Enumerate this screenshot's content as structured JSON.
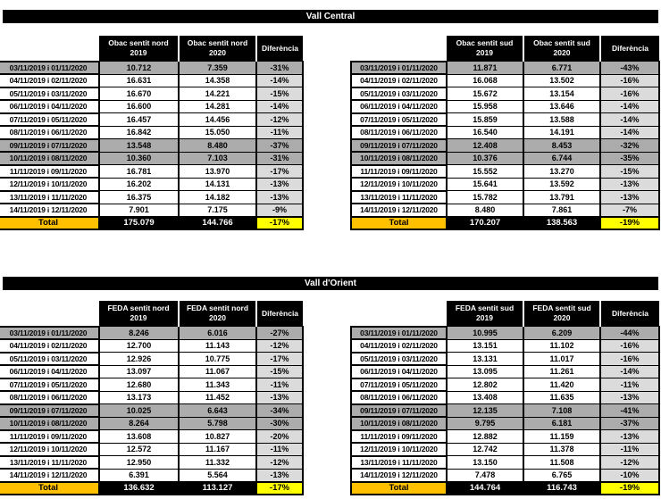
{
  "colors": {
    "header_bg": "#000000",
    "header_text": "#FFFFFF",
    "weekend_bg": "#ACACAC",
    "diff_weekday_bg": "#DBDBDB",
    "total_label_bg": "#FFC000",
    "total_value_bg": "#000000",
    "total_diff_bg": "#FFFF00",
    "border": "#000000"
  },
  "sections": [
    {
      "title": "Vall Central",
      "tables": [
        {
          "h2019": {
            "l1": "Obac sentit nord",
            "l2": "2019"
          },
          "h2020": {
            "l1": "Obac sentit nord",
            "l2": "2020"
          },
          "diff_header": "Diferència",
          "rows": [
            {
              "date": "03/11/2019 i 01/11/2020",
              "v2019": "10.712",
              "v2020": "7.359",
              "diff": "-31%",
              "weekend": true
            },
            {
              "date": "04/11/2019 i 02/11/2020",
              "v2019": "16.631",
              "v2020": "14.358",
              "diff": "-14%",
              "weekend": false
            },
            {
              "date": "05/11/2019 i 03/11/2020",
              "v2019": "16.670",
              "v2020": "14.221",
              "diff": "-15%",
              "weekend": false
            },
            {
              "date": "06/11/2019 i 04/11/2020",
              "v2019": "16.600",
              "v2020": "14.281",
              "diff": "-14%",
              "weekend": false
            },
            {
              "date": "07/11/2019 i 05/11/2020",
              "v2019": "16.457",
              "v2020": "14.456",
              "diff": "-12%",
              "weekend": false
            },
            {
              "date": "08/11/2019 i 06/11/2020",
              "v2019": "16.842",
              "v2020": "15.050",
              "diff": "-11%",
              "weekend": false
            },
            {
              "date": "09/11/2019 i 07/11/2020",
              "v2019": "13.548",
              "v2020": "8.480",
              "diff": "-37%",
              "weekend": true
            },
            {
              "date": "10/11/2019 i 08/11/2020",
              "v2019": "10.360",
              "v2020": "7.103",
              "diff": "-31%",
              "weekend": true
            },
            {
              "date": "11/11/2019 i 09/11/2020",
              "v2019": "16.781",
              "v2020": "13.970",
              "diff": "-17%",
              "weekend": false
            },
            {
              "date": "12/11/2019 i 10/11/2020",
              "v2019": "16.202",
              "v2020": "14.131",
              "diff": "-13%",
              "weekend": false
            },
            {
              "date": "13/11/2019 i 11/11/2020",
              "v2019": "16.375",
              "v2020": "14.182",
              "diff": "-13%",
              "weekend": false
            },
            {
              "date": "14/11/2019 i 12/11/2020",
              "v2019": "7.901",
              "v2020": "7.175",
              "diff": "-9%",
              "weekend": false
            }
          ],
          "total": {
            "label": "Total",
            "v2019": "175.079",
            "v2020": "144.766",
            "diff": "-17%"
          }
        },
        {
          "h2019": {
            "l1": "Obac sentit sud",
            "l2": "2019"
          },
          "h2020": {
            "l1": "Obac sentit sud",
            "l2": "2020"
          },
          "diff_header": "Diferència",
          "rows": [
            {
              "date": "03/11/2019 i 01/11/2020",
              "v2019": "11.871",
              "v2020": "6.771",
              "diff": "-43%",
              "weekend": true
            },
            {
              "date": "04/11/2019 i 02/11/2020",
              "v2019": "16.068",
              "v2020": "13.502",
              "diff": "-16%",
              "weekend": false
            },
            {
              "date": "05/11/2019 i 03/11/2020",
              "v2019": "15.672",
              "v2020": "13.154",
              "diff": "-16%",
              "weekend": false
            },
            {
              "date": "06/11/2019 i 04/11/2020",
              "v2019": "15.958",
              "v2020": "13.646",
              "diff": "-14%",
              "weekend": false
            },
            {
              "date": "07/11/2019 i 05/11/2020",
              "v2019": "15.859",
              "v2020": "13.588",
              "diff": "-14%",
              "weekend": false
            },
            {
              "date": "08/11/2019 i 06/11/2020",
              "v2019": "16.540",
              "v2020": "14.191",
              "diff": "-14%",
              "weekend": false
            },
            {
              "date": "09/11/2019 i 07/11/2020",
              "v2019": "12.408",
              "v2020": "8.453",
              "diff": "-32%",
              "weekend": true
            },
            {
              "date": "10/11/2019 i 08/11/2020",
              "v2019": "10.376",
              "v2020": "6.744",
              "diff": "-35%",
              "weekend": true
            },
            {
              "date": "11/11/2019 i 09/11/2020",
              "v2019": "15.552",
              "v2020": "13.270",
              "diff": "-15%",
              "weekend": false
            },
            {
              "date": "12/11/2019 i 10/11/2020",
              "v2019": "15.641",
              "v2020": "13.592",
              "diff": "-13%",
              "weekend": false
            },
            {
              "date": "13/11/2019 i 11/11/2020",
              "v2019": "15.782",
              "v2020": "13.791",
              "diff": "-13%",
              "weekend": false
            },
            {
              "date": "14/11/2019 i 12/11/2020",
              "v2019": "8.480",
              "v2020": "7.861",
              "diff": "-7%",
              "weekend": false
            }
          ],
          "total": {
            "label": "Total",
            "v2019": "170.207",
            "v2020": "138.563",
            "diff": "-19%"
          }
        }
      ]
    },
    {
      "title": "Vall d'Orient",
      "tables": [
        {
          "h2019": {
            "l1": "FEDA sentit nord",
            "l2": "2019"
          },
          "h2020": {
            "l1": "FEDA sentit nord",
            "l2": "2020"
          },
          "diff_header": "Diferència",
          "rows": [
            {
              "date": "03/11/2019 i 01/11/2020",
              "v2019": "8.246",
              "v2020": "6.016",
              "diff": "-27%",
              "weekend": true
            },
            {
              "date": "04/11/2019 i 02/11/2020",
              "v2019": "12.700",
              "v2020": "11.143",
              "diff": "-12%",
              "weekend": false
            },
            {
              "date": "05/11/2019 i 03/11/2020",
              "v2019": "12.926",
              "v2020": "10.775",
              "diff": "-17%",
              "weekend": false
            },
            {
              "date": "06/11/2019 i 04/11/2020",
              "v2019": "13.097",
              "v2020": "11.067",
              "diff": "-15%",
              "weekend": false
            },
            {
              "date": "07/11/2019 i 05/11/2020",
              "v2019": "12.680",
              "v2020": "11.343",
              "diff": "-11%",
              "weekend": false
            },
            {
              "date": "08/11/2019 i 06/11/2020",
              "v2019": "13.173",
              "v2020": "11.452",
              "diff": "-13%",
              "weekend": false
            },
            {
              "date": "09/11/2019 i 07/11/2020",
              "v2019": "10.025",
              "v2020": "6.643",
              "diff": "-34%",
              "weekend": true
            },
            {
              "date": "10/11/2019 i 08/11/2020",
              "v2019": "8.264",
              "v2020": "5.798",
              "diff": "-30%",
              "weekend": true
            },
            {
              "date": "11/11/2019 i 09/11/2020",
              "v2019": "13.608",
              "v2020": "10.827",
              "diff": "-20%",
              "weekend": false
            },
            {
              "date": "12/11/2019 i 10/11/2020",
              "v2019": "12.572",
              "v2020": "11.167",
              "diff": "-11%",
              "weekend": false
            },
            {
              "date": "13/11/2019 i 11/11/2020",
              "v2019": "12.950",
              "v2020": "11.332",
              "diff": "-12%",
              "weekend": false
            },
            {
              "date": "14/11/2019 i 12/11/2020",
              "v2019": "6.391",
              "v2020": "5.564",
              "diff": "-13%",
              "weekend": false
            }
          ],
          "total": {
            "label": "Total",
            "v2019": "136.632",
            "v2020": "113.127",
            "diff": "-17%"
          }
        },
        {
          "h2019": {
            "l1": "FEDA sentit sud",
            "l2": "2019"
          },
          "h2020": {
            "l1": "FEDA sentit sud",
            "l2": "2020"
          },
          "diff_header": "Diferència",
          "rows": [
            {
              "date": "03/11/2019 i 01/11/2020",
              "v2019": "10.995",
              "v2020": "6.209",
              "diff": "-44%",
              "weekend": true
            },
            {
              "date": "04/11/2019 i 02/11/2020",
              "v2019": "13.151",
              "v2020": "11.102",
              "diff": "-16%",
              "weekend": false
            },
            {
              "date": "05/11/2019 i 03/11/2020",
              "v2019": "13.131",
              "v2020": "11.017",
              "diff": "-16%",
              "weekend": false
            },
            {
              "date": "06/11/2019 i 04/11/2020",
              "v2019": "13.095",
              "v2020": "11.261",
              "diff": "-14%",
              "weekend": false
            },
            {
              "date": "07/11/2019 i 05/11/2020",
              "v2019": "12.802",
              "v2020": "11.420",
              "diff": "-11%",
              "weekend": false
            },
            {
              "date": "08/11/2019 i 06/11/2020",
              "v2019": "13.408",
              "v2020": "11.635",
              "diff": "-13%",
              "weekend": false
            },
            {
              "date": "09/11/2019 i 07/11/2020",
              "v2019": "12.135",
              "v2020": "7.108",
              "diff": "-41%",
              "weekend": true
            },
            {
              "date": "10/11/2019 i 08/11/2020",
              "v2019": "9.795",
              "v2020": "6.181",
              "diff": "-37%",
              "weekend": true
            },
            {
              "date": "11/11/2019 i 09/11/2020",
              "v2019": "12.882",
              "v2020": "11.159",
              "diff": "-13%",
              "weekend": false
            },
            {
              "date": "12/11/2019 i 10/11/2020",
              "v2019": "12.742",
              "v2020": "11.378",
              "diff": "-11%",
              "weekend": false
            },
            {
              "date": "13/11/2019 i 11/11/2020",
              "v2019": "13.150",
              "v2020": "11.508",
              "diff": "-12%",
              "weekend": false
            },
            {
              "date": "14/11/2019 i 12/11/2020",
              "v2019": "7.478",
              "v2020": "6.765",
              "diff": "-10%",
              "weekend": false
            }
          ],
          "total": {
            "label": "Total",
            "v2019": "144.764",
            "v2020": "116.743",
            "diff": "-19%"
          }
        }
      ]
    }
  ]
}
